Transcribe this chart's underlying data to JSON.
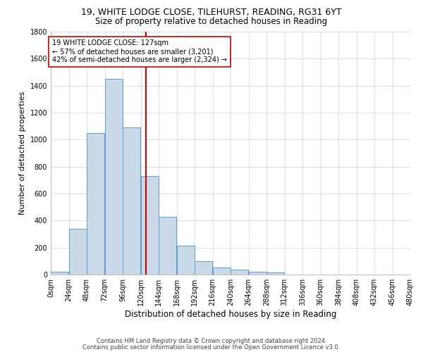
{
  "title1": "19, WHITE LODGE CLOSE, TILEHURST, READING, RG31 6YT",
  "title2": "Size of property relative to detached houses in Reading",
  "xlabel": "Distribution of detached houses by size in Reading",
  "ylabel": "Number of detached properties",
  "bin_edges": [
    0,
    24,
    48,
    72,
    96,
    120,
    144,
    168,
    192,
    216,
    240,
    264,
    288,
    312,
    336,
    360,
    384,
    408,
    432,
    456,
    480
  ],
  "bar_heights": [
    20,
    340,
    1050,
    1450,
    1090,
    730,
    430,
    215,
    100,
    50,
    35,
    20,
    15,
    0,
    0,
    0,
    0,
    0,
    0,
    0
  ],
  "bar_color": "#c9d9e8",
  "bar_edge_color": "#5b9bd5",
  "property_size": 127,
  "vline_color": "#cc0000",
  "annotation_text": "19 WHITE LODGE CLOSE: 127sqm\n← 57% of detached houses are smaller (3,201)\n42% of semi-detached houses are larger (2,324) →",
  "annotation_box_color": "#ffffff",
  "annotation_box_edge": "#cc0000",
  "grid_color": "#d0d0d0",
  "footer1": "Contains HM Land Registry data © Crown copyright and database right 2024.",
  "footer2": "Contains public sector information licensed under the Open Government Licence v3.0.",
  "ylim": [
    0,
    1800
  ],
  "yticks": [
    0,
    200,
    400,
    600,
    800,
    1000,
    1200,
    1400,
    1600,
    1800
  ],
  "bg_color": "#ffffff",
  "title1_fontsize": 9,
  "title2_fontsize": 8.5,
  "ylabel_fontsize": 8,
  "xlabel_fontsize": 8.5,
  "tick_fontsize": 7,
  "annotation_fontsize": 7,
  "footer_fontsize": 6
}
